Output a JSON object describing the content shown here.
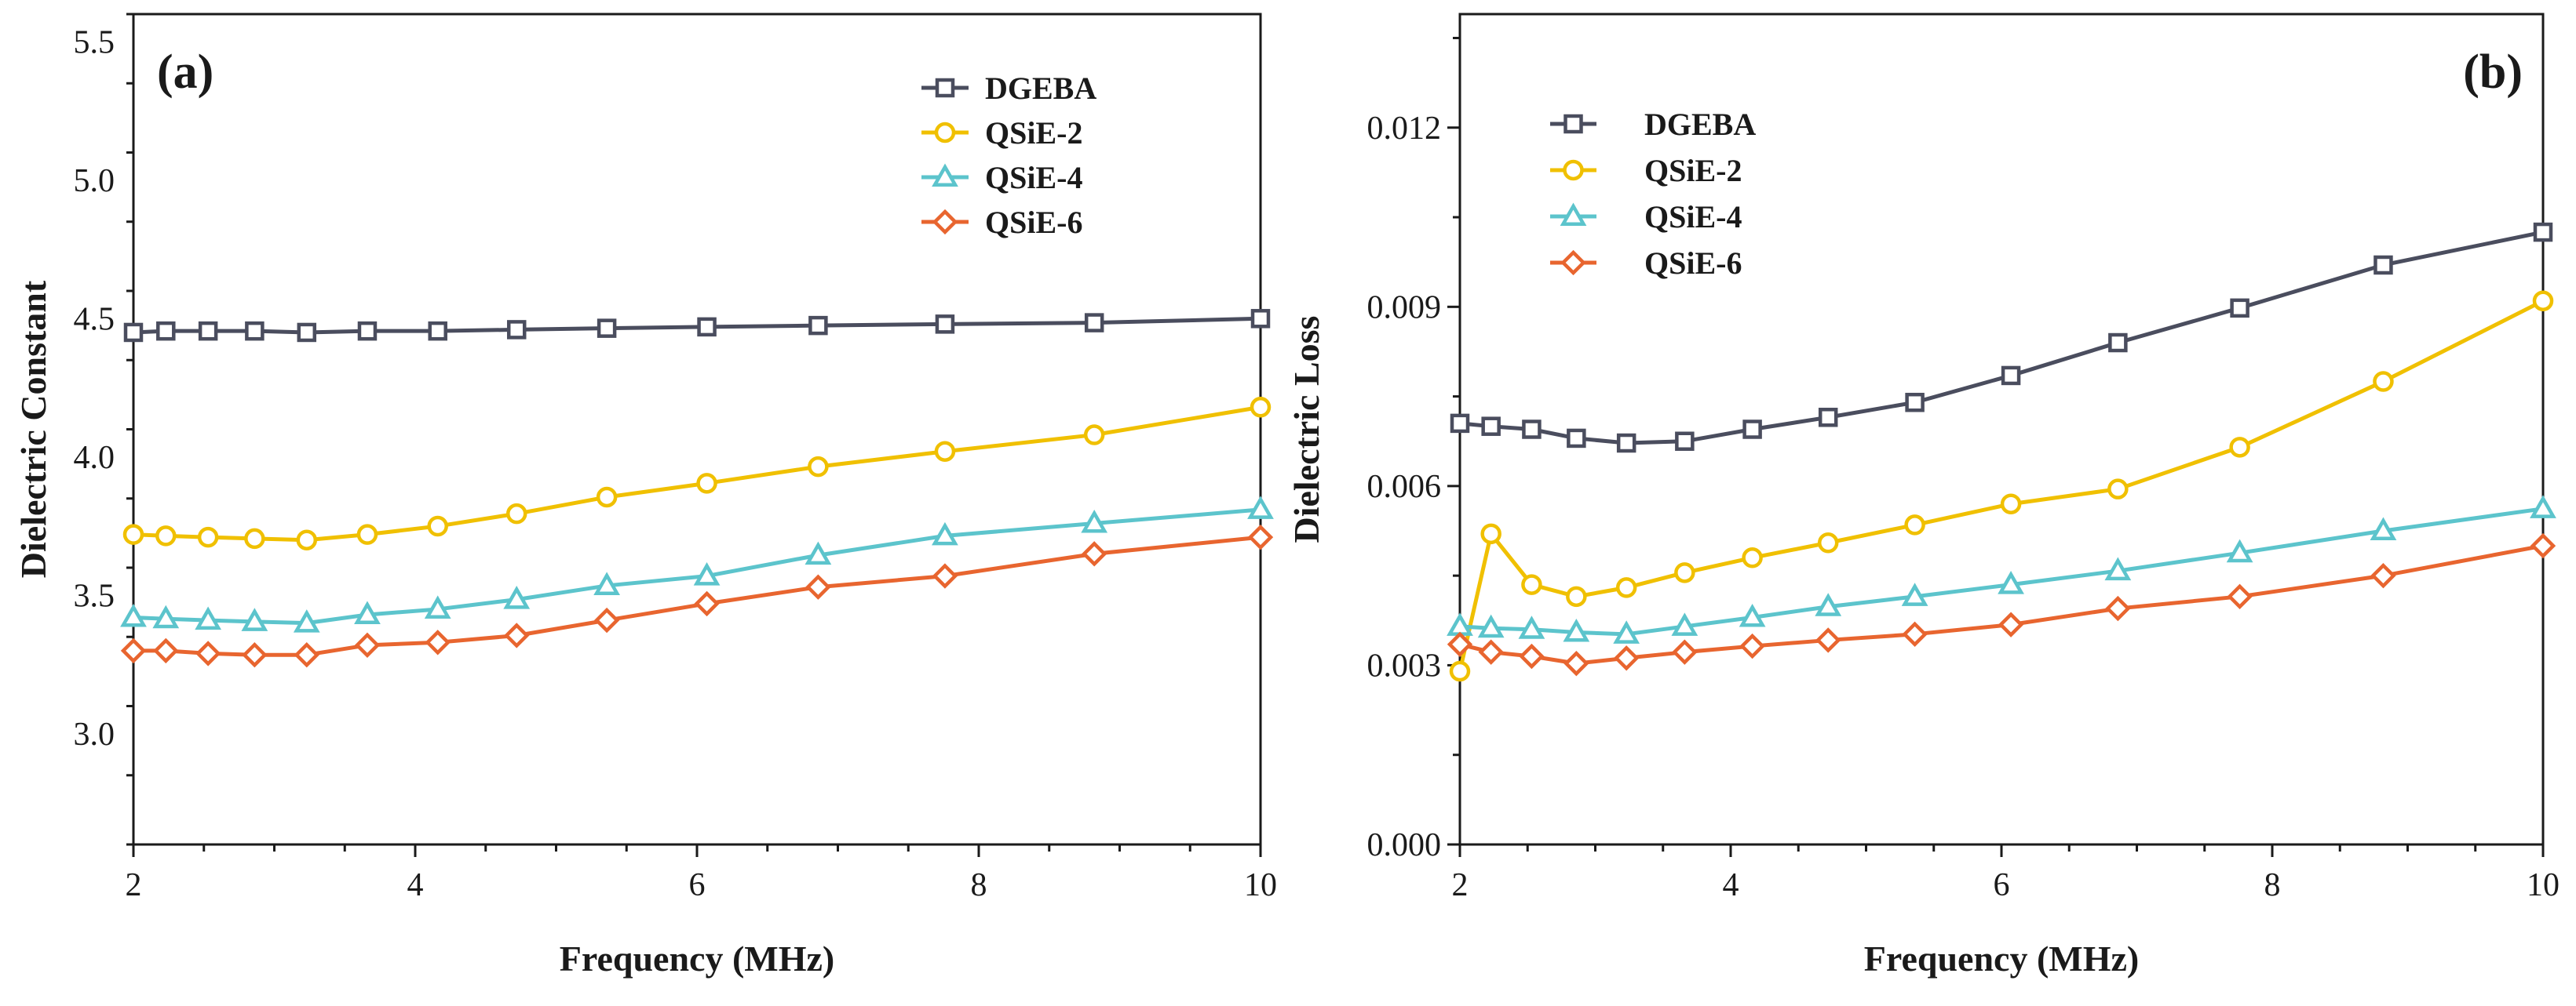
{
  "chart_data": [
    {
      "type": "line",
      "panel_label": "(a)",
      "xlabel": "Frequency (MHz)",
      "ylabel": "Dielectric Constant",
      "xlim": [
        2,
        10
      ],
      "ylim": [
        2.6,
        5.6
      ],
      "xticks": [
        2,
        4,
        6,
        8,
        10
      ],
      "xtick_labels": [
        "2",
        "4",
        "6",
        "8",
        "10"
      ],
      "yticks": [
        3.0,
        3.5,
        4.0,
        4.5,
        5.0,
        5.5
      ],
      "ytick_labels": [
        "3.0",
        "3.5",
        "4.0",
        "4.5",
        "5.0",
        "5.5"
      ],
      "legend_position": "top-right",
      "x": [
        2.0,
        2.23,
        2.53,
        2.86,
        3.23,
        3.66,
        4.16,
        4.72,
        5.36,
        6.07,
        6.86,
        7.76,
        8.82,
        10.0
      ],
      "series": [
        {
          "name": "DGEBA",
          "marker": "square",
          "color": "#4a4d5e",
          "values": [
            4.45,
            4.455,
            4.455,
            4.455,
            4.45,
            4.455,
            4.455,
            4.46,
            4.465,
            4.47,
            4.475,
            4.48,
            4.485,
            4.5
          ]
        },
        {
          "name": "QSiE-2",
          "marker": "circle",
          "color": "#f0c000",
          "values": [
            3.72,
            3.715,
            3.71,
            3.705,
            3.7,
            3.72,
            3.75,
            3.795,
            3.855,
            3.905,
            3.965,
            4.02,
            4.08,
            4.18
          ]
        },
        {
          "name": "QSiE-4",
          "marker": "triangle",
          "color": "#5cc4cc",
          "values": [
            3.42,
            3.415,
            3.41,
            3.405,
            3.4,
            3.43,
            3.45,
            3.485,
            3.535,
            3.57,
            3.645,
            3.715,
            3.76,
            3.81
          ]
        },
        {
          "name": "QSiE-6",
          "marker": "diamond",
          "color": "#e8652f",
          "values": [
            3.3,
            3.3,
            3.29,
            3.285,
            3.285,
            3.32,
            3.33,
            3.355,
            3.41,
            3.47,
            3.53,
            3.57,
            3.65,
            3.71
          ]
        }
      ]
    },
    {
      "type": "line",
      "panel_label": "(b)",
      "xlabel": "Frequency (MHz)",
      "ylabel": "Dielectric Loss",
      "xlim": [
        2,
        10
      ],
      "ylim": [
        0.0,
        0.0139
      ],
      "xticks": [
        2,
        4,
        6,
        8,
        10
      ],
      "xtick_labels": [
        "2",
        "4",
        "6",
        "8",
        "10"
      ],
      "yticks": [
        0.0,
        0.003,
        0.006,
        0.009,
        0.012
      ],
      "ytick_labels": [
        "0.000",
        "0.003",
        "0.006",
        "0.009",
        "0.012"
      ],
      "legend_position": "top-left",
      "x": [
        2.0,
        2.23,
        2.53,
        2.86,
        3.23,
        3.66,
        4.16,
        4.72,
        5.36,
        6.07,
        6.86,
        7.76,
        8.82,
        10.0
      ],
      "series": [
        {
          "name": "DGEBA",
          "marker": "square",
          "color": "#4a4d5e",
          "values": [
            0.00705,
            0.007,
            0.00695,
            0.0068,
            0.00672,
            0.00675,
            0.00695,
            0.00715,
            0.0074,
            0.00785,
            0.0084,
            0.00898,
            0.0097,
            0.01025
          ]
        },
        {
          "name": "QSiE-2",
          "marker": "circle",
          "color": "#f0c000",
          "values": [
            0.0029,
            0.0052,
            0.00435,
            0.00415,
            0.0043,
            0.00455,
            0.0048,
            0.00505,
            0.00535,
            0.0057,
            0.00595,
            0.00665,
            0.00775,
            0.0091
          ]
        },
        {
          "name": "QSiE-4",
          "marker": "triangle",
          "color": "#5cc4cc",
          "values": [
            0.00365,
            0.00362,
            0.0036,
            0.00355,
            0.00352,
            0.00365,
            0.0038,
            0.00398,
            0.00415,
            0.00435,
            0.00458,
            0.00488,
            0.00525,
            0.00562
          ]
        },
        {
          "name": "QSiE-6",
          "marker": "diamond",
          "color": "#e8652f",
          "values": [
            0.00335,
            0.00322,
            0.00315,
            0.00303,
            0.00312,
            0.00322,
            0.00332,
            0.00342,
            0.00352,
            0.00368,
            0.00395,
            0.00415,
            0.0045,
            0.005
          ]
        }
      ]
    }
  ]
}
